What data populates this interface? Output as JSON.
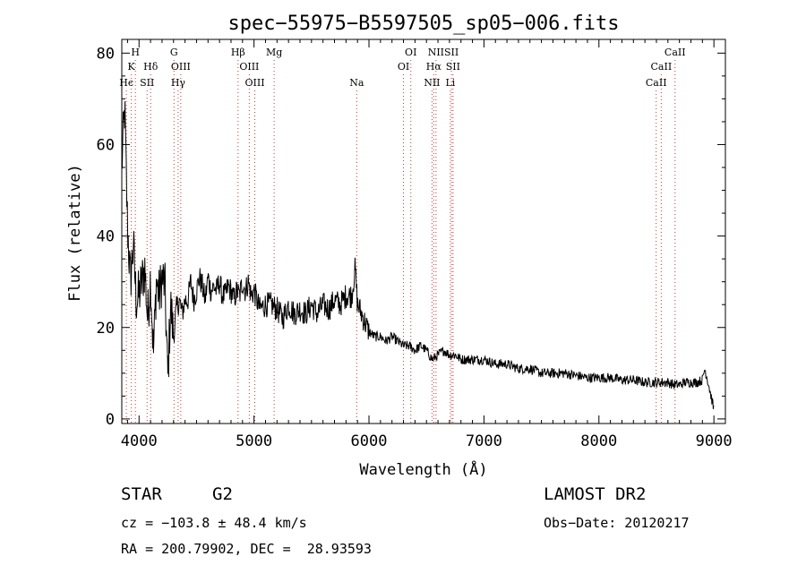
{
  "chart_data": {
    "type": "line",
    "title": "spec−55975−B5597505_sp05−006.fits",
    "xlabel": "Wavelength (Å)",
    "ylabel": "Flux (relative)",
    "xlim": [
      3850,
      9100
    ],
    "ylim": [
      -1,
      83
    ],
    "xticks": [
      4000,
      5000,
      6000,
      7000,
      8000,
      9000
    ],
    "yticks": [
      0,
      20,
      40,
      60,
      80
    ],
    "grid": false,
    "line_color": "#000000",
    "marker_color": "#cc3333",
    "line_markers": [
      {
        "label": "H",
        "x": 3968,
        "row": 0
      },
      {
        "label": "K",
        "x": 3933,
        "row": 1
      },
      {
        "label": "Hϵ",
        "x": 3890,
        "row": 2
      },
      {
        "label": "Hδ",
        "x": 4101,
        "row": 1
      },
      {
        "label": "SII",
        "x": 4070,
        "row": 2
      },
      {
        "label": "G",
        "x": 4304,
        "row": 0
      },
      {
        "label": "OIII",
        "x": 4363,
        "row": 1
      },
      {
        "label": "Hγ",
        "x": 4340,
        "row": 2
      },
      {
        "label": "Hβ",
        "x": 4861,
        "row": 0
      },
      {
        "label": "OIII",
        "x": 4959,
        "row": 1
      },
      {
        "label": "OIII",
        "x": 5007,
        "row": 2
      },
      {
        "label": "Mg",
        "x": 5175,
        "row": 0
      },
      {
        "label": "Na",
        "x": 5893,
        "row": 2
      },
      {
        "label": "OI",
        "x": 6364,
        "row": 0
      },
      {
        "label": "OI",
        "x": 6300,
        "row": 1
      },
      {
        "label": "NII",
        "x": 6583,
        "row": 0
      },
      {
        "label": "SII",
        "x": 6717,
        "row": 0
      },
      {
        "label": "Hα",
        "x": 6563,
        "row": 1
      },
      {
        "label": "SII",
        "x": 6731,
        "row": 1
      },
      {
        "label": "NII",
        "x": 6548,
        "row": 2
      },
      {
        "label": "Li",
        "x": 6708,
        "row": 2
      },
      {
        "label": "CaII",
        "x": 8662,
        "row": 0
      },
      {
        "label": "CaII",
        "x": 8542,
        "row": 1
      },
      {
        "label": "CaII",
        "x": 8498,
        "row": 2
      }
    ],
    "spectrum": {
      "x": [
        3850,
        3875,
        3900,
        3925,
        3950,
        3975,
        4000,
        4025,
        4050,
        4075,
        4100,
        4125,
        4150,
        4175,
        4200,
        4225,
        4250,
        4275,
        4300,
        4325,
        4350,
        4375,
        4400,
        4425,
        4450,
        4475,
        4500,
        4525,
        4550,
        4575,
        4600,
        4625,
        4650,
        4675,
        4700,
        4725,
        4750,
        4775,
        4800,
        4825,
        4850,
        4875,
        4900,
        4925,
        4950,
        4975,
        5000,
        5050,
        5100,
        5150,
        5200,
        5250,
        5300,
        5350,
        5400,
        5450,
        5500,
        5550,
        5600,
        5650,
        5700,
        5750,
        5800,
        5850,
        5880,
        5900,
        5920,
        5950,
        6000,
        6050,
        6100,
        6150,
        6200,
        6250,
        6300,
        6350,
        6400,
        6450,
        6500,
        6550,
        6600,
        6650,
        6700,
        6750,
        6800,
        6900,
        7000,
        7100,
        7200,
        7300,
        7400,
        7500,
        7600,
        7700,
        7800,
        7900,
        8000,
        8100,
        8200,
        8300,
        8400,
        8500,
        8600,
        8650,
        8700,
        8750,
        8800,
        8850,
        8900,
        8920,
        8950,
        9000
      ],
      "y": [
        55,
        68,
        42,
        30,
        38,
        26,
        27,
        30,
        33,
        22,
        31,
        14,
        30,
        27,
        31,
        29,
        9,
        25,
        18,
        24,
        26,
        23,
        26,
        26,
        30,
        26,
        28,
        31,
        29,
        26,
        31,
        28,
        29,
        28,
        30,
        27,
        27,
        29,
        28,
        26,
        28,
        27,
        30,
        28,
        30,
        27,
        28,
        24,
        25,
        25,
        24,
        22,
        25,
        23,
        24,
        23,
        25,
        23,
        25,
        24,
        26,
        25,
        27,
        27,
        33,
        25,
        24,
        22,
        19,
        18,
        18,
        17,
        18,
        17,
        16,
        16,
        15,
        16,
        15,
        13,
        14,
        15,
        14,
        14,
        13,
        13,
        13,
        12,
        12,
        11,
        11,
        10,
        10,
        10,
        9.5,
        9,
        9,
        9,
        8.5,
        8.5,
        8,
        8,
        8,
        7.5,
        7.5,
        8,
        8,
        8,
        8.5,
        11,
        8,
        2
      ]
    }
  },
  "footer": {
    "object_type": "STAR",
    "subclass": "G2",
    "cz": "cz = −103.8 ± 48.4 km/s",
    "coords": "RA = 200.79902, DEC =  28.93593",
    "survey": "LAMOST DR2",
    "obs_date": "Obs−Date: 20120217"
  }
}
